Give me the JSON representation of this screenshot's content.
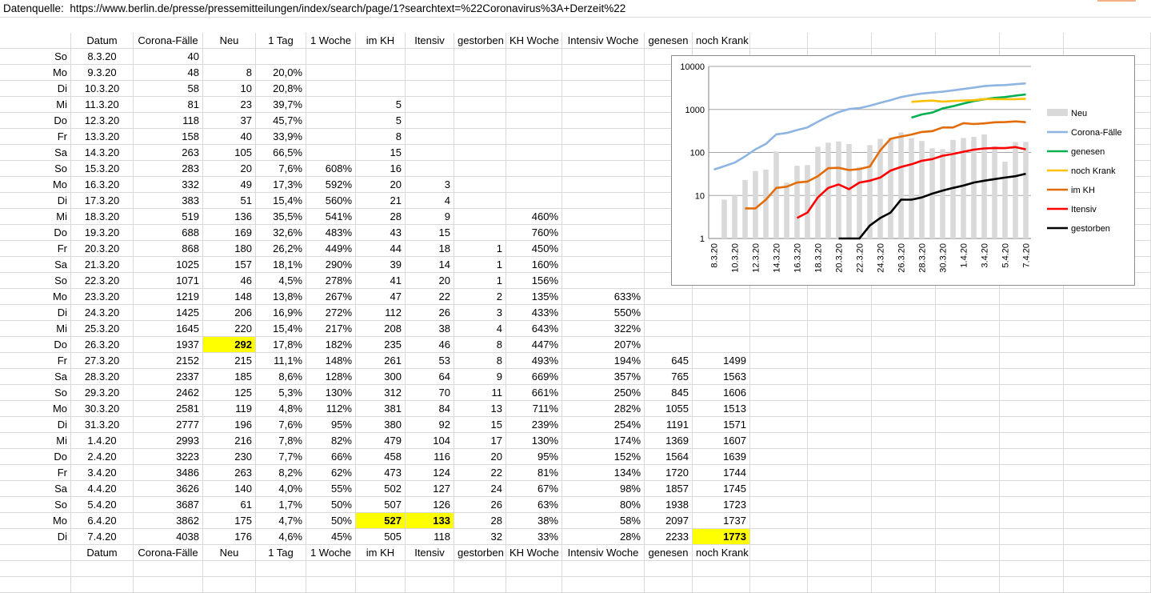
{
  "source": {
    "label": "Datenquelle:",
    "url": "https://www.berlin.de/presse/pressemitteilungen/index/search/page/1?searchtext=%22Coronavirus%3A+Derzeit%22"
  },
  "table": {
    "headers": [
      "",
      "Datum",
      "Corona-Fälle",
      "Neu",
      "1 Tag",
      "1 Woche",
      "im KH",
      "Itensiv",
      "gestorben",
      "KH Woche",
      "Intensiv Woche",
      "genesen",
      "noch Krank"
    ],
    "rows": [
      [
        "So",
        "8.3.20",
        "40",
        "",
        "",
        "",
        "",
        "",
        "",
        "",
        "",
        "",
        ""
      ],
      [
        "Mo",
        "9.3.20",
        "48",
        "8",
        "20,0%",
        "",
        "",
        "",
        "",
        "",
        "",
        "",
        ""
      ],
      [
        "Di",
        "10.3.20",
        "58",
        "10",
        "20,8%",
        "",
        "",
        "",
        "",
        "",
        "",
        "",
        ""
      ],
      [
        "Mi",
        "11.3.20",
        "81",
        "23",
        "39,7%",
        "",
        "5",
        "",
        "",
        "",
        "",
        "",
        ""
      ],
      [
        "Do",
        "12.3.20",
        "118",
        "37",
        "45,7%",
        "",
        "5",
        "",
        "",
        "",
        "",
        "",
        ""
      ],
      [
        "Fr",
        "13.3.20",
        "158",
        "40",
        "33,9%",
        "",
        "8",
        "",
        "",
        "",
        "",
        "",
        ""
      ],
      [
        "Sa",
        "14.3.20",
        "263",
        "105",
        "66,5%",
        "",
        "15",
        "",
        "",
        "",
        "",
        "",
        ""
      ],
      [
        "So",
        "15.3.20",
        "283",
        "20",
        "7,6%",
        "608%",
        "16",
        "",
        "",
        "",
        "",
        "",
        ""
      ],
      [
        "Mo",
        "16.3.20",
        "332",
        "49",
        "17,3%",
        "592%",
        "20",
        "3",
        "",
        "",
        "",
        "",
        ""
      ],
      [
        "Di",
        "17.3.20",
        "383",
        "51",
        "15,4%",
        "560%",
        "21",
        "4",
        "",
        "",
        "",
        "",
        ""
      ],
      [
        "Mi",
        "18.3.20",
        "519",
        "136",
        "35,5%",
        "541%",
        "28",
        "9",
        "",
        "460%",
        "",
        "",
        ""
      ],
      [
        "Do",
        "19.3.20",
        "688",
        "169",
        "32,6%",
        "483%",
        "43",
        "15",
        "",
        "760%",
        "",
        "",
        ""
      ],
      [
        "Fr",
        "20.3.20",
        "868",
        "180",
        "26,2%",
        "449%",
        "44",
        "18",
        "1",
        "450%",
        "",
        "",
        ""
      ],
      [
        "Sa",
        "21.3.20",
        "1025",
        "157",
        "18,1%",
        "290%",
        "39",
        "14",
        "1",
        "160%",
        "",
        "",
        ""
      ],
      [
        "So",
        "22.3.20",
        "1071",
        "46",
        "4,5%",
        "278%",
        "41",
        "20",
        "1",
        "156%",
        "",
        "",
        ""
      ],
      [
        "Mo",
        "23.3.20",
        "1219",
        "148",
        "13,8%",
        "267%",
        "47",
        "22",
        "2",
        "135%",
        "633%",
        "",
        ""
      ],
      [
        "Di",
        "24.3.20",
        "1425",
        "206",
        "16,9%",
        "272%",
        "112",
        "26",
        "3",
        "433%",
        "550%",
        "",
        ""
      ],
      [
        "Mi",
        "25.3.20",
        "1645",
        "220",
        "15,4%",
        "217%",
        "208",
        "38",
        "4",
        "643%",
        "322%",
        "",
        ""
      ],
      [
        "Do",
        "26.3.20",
        "1937",
        "292",
        "17,8%",
        "182%",
        "235",
        "46",
        "8",
        "447%",
        "207%",
        "",
        ""
      ],
      [
        "Fr",
        "27.3.20",
        "2152",
        "215",
        "11,1%",
        "148%",
        "261",
        "53",
        "8",
        "493%",
        "194%",
        "645",
        "1499"
      ],
      [
        "Sa",
        "28.3.20",
        "2337",
        "185",
        "8,6%",
        "128%",
        "300",
        "64",
        "9",
        "669%",
        "357%",
        "765",
        "1563"
      ],
      [
        "So",
        "29.3.20",
        "2462",
        "125",
        "5,3%",
        "130%",
        "312",
        "70",
        "11",
        "661%",
        "250%",
        "845",
        "1606"
      ],
      [
        "Mo",
        "30.3.20",
        "2581",
        "119",
        "4,8%",
        "112%",
        "381",
        "84",
        "13",
        "711%",
        "282%",
        "1055",
        "1513"
      ],
      [
        "Di",
        "31.3.20",
        "2777",
        "196",
        "7,6%",
        "95%",
        "380",
        "92",
        "15",
        "239%",
        "254%",
        "1191",
        "1571"
      ],
      [
        "Mi",
        "1.4.20",
        "2993",
        "216",
        "7,8%",
        "82%",
        "479",
        "104",
        "17",
        "130%",
        "174%",
        "1369",
        "1607"
      ],
      [
        "Do",
        "2.4.20",
        "3223",
        "230",
        "7,7%",
        "66%",
        "458",
        "116",
        "20",
        "95%",
        "152%",
        "1564",
        "1639"
      ],
      [
        "Fr",
        "3.4.20",
        "3486",
        "263",
        "8,2%",
        "62%",
        "473",
        "124",
        "22",
        "81%",
        "134%",
        "1720",
        "1744"
      ],
      [
        "Sa",
        "4.4.20",
        "3626",
        "140",
        "4,0%",
        "55%",
        "502",
        "127",
        "24",
        "67%",
        "98%",
        "1857",
        "1745"
      ],
      [
        "So",
        "5.4.20",
        "3687",
        "61",
        "1,7%",
        "50%",
        "507",
        "126",
        "26",
        "63%",
        "80%",
        "1938",
        "1723"
      ],
      [
        "Mo",
        "6.4.20",
        "3862",
        "175",
        "4,7%",
        "50%",
        "527",
        "133",
        "28",
        "38%",
        "58%",
        "2097",
        "1737"
      ],
      [
        "Di",
        "7.4.20",
        "4038",
        "176",
        "4,6%",
        "45%",
        "505",
        "118",
        "32",
        "33%",
        "28%",
        "2233",
        "1773"
      ]
    ],
    "footer": [
      "",
      "Datum",
      "Corona-Fälle",
      "Neu",
      "1 Tag",
      "1 Woche",
      "im KH",
      "Itensiv",
      "gestorben",
      "KH Woche",
      "Intensiv Woche",
      "genesen",
      "noch Krank"
    ],
    "highlight_color": "#ffff00",
    "highlighted_cells": [
      {
        "row": 18,
        "col": 3
      },
      {
        "row": 29,
        "col": 6
      },
      {
        "row": 29,
        "col": 7
      },
      {
        "row": 30,
        "col": 12
      }
    ]
  },
  "chart_data": {
    "type": "bar",
    "y_scale": "log",
    "ylim": [
      1,
      10000
    ],
    "y_ticks": [
      "10000",
      "1000",
      "100",
      "10",
      "1"
    ],
    "categories": [
      "8.3.20",
      "9.3.20",
      "10.3.20",
      "11.3.20",
      "12.3.20",
      "13.3.20",
      "14.3.20",
      "15.3.20",
      "16.3.20",
      "17.3.20",
      "18.3.20",
      "19.3.20",
      "20.3.20",
      "21.3.20",
      "22.3.20",
      "23.3.20",
      "24.3.20",
      "25.3.20",
      "26.3.20",
      "27.3.20",
      "28.3.20",
      "29.3.20",
      "30.3.20",
      "31.3.20",
      "1.4.20",
      "2.4.20",
      "3.4.20",
      "4.4.20",
      "5.4.20",
      "6.4.20",
      "7.4.20"
    ],
    "x_tick_labels": [
      "8.3.20",
      "10.3.20",
      "12.3.20",
      "14.3.20",
      "16.3.20",
      "18.3.20",
      "20.3.20",
      "22.3.20",
      "24.3.20",
      "26.3.20",
      "28.3.20",
      "30.3.20",
      "1.4.20",
      "3.4.20",
      "5.4.20",
      "7.4.20"
    ],
    "legend_position": "right",
    "gridlines": true,
    "series": [
      {
        "name": "Neu",
        "kind": "bar",
        "color": "#d9d9d9",
        "values": [
          null,
          8,
          10,
          23,
          37,
          40,
          105,
          20,
          49,
          51,
          136,
          169,
          180,
          157,
          46,
          148,
          206,
          220,
          292,
          215,
          185,
          125,
          119,
          196,
          216,
          230,
          263,
          140,
          61,
          175,
          176
        ]
      },
      {
        "name": "Corona-Fälle",
        "kind": "line",
        "color": "#8eb4e3",
        "values": [
          40,
          48,
          58,
          81,
          118,
          158,
          263,
          283,
          332,
          383,
          519,
          688,
          868,
          1025,
          1071,
          1219,
          1425,
          1645,
          1937,
          2152,
          2337,
          2462,
          2581,
          2777,
          2993,
          3223,
          3486,
          3626,
          3687,
          3862,
          4038
        ]
      },
      {
        "name": "genesen",
        "kind": "line",
        "color": "#00b050",
        "values": [
          null,
          null,
          null,
          null,
          null,
          null,
          null,
          null,
          null,
          null,
          null,
          null,
          null,
          null,
          null,
          null,
          null,
          null,
          null,
          645,
          765,
          845,
          1055,
          1191,
          1369,
          1564,
          1720,
          1857,
          1938,
          2097,
          2233
        ]
      },
      {
        "name": "noch Krank",
        "kind": "line",
        "color": "#ffc000",
        "values": [
          null,
          null,
          null,
          null,
          null,
          null,
          null,
          null,
          null,
          null,
          null,
          null,
          null,
          null,
          null,
          null,
          null,
          null,
          null,
          1499,
          1563,
          1606,
          1513,
          1571,
          1607,
          1639,
          1744,
          1745,
          1723,
          1737,
          1773
        ]
      },
      {
        "name": "im KH",
        "kind": "line",
        "color": "#e36c09",
        "values": [
          null,
          null,
          null,
          5,
          5,
          8,
          15,
          16,
          20,
          21,
          28,
          43,
          44,
          39,
          41,
          47,
          112,
          208,
          235,
          261,
          300,
          312,
          381,
          380,
          479,
          458,
          473,
          502,
          507,
          527,
          505
        ]
      },
      {
        "name": "Itensiv",
        "kind": "line",
        "color": "#ff0000",
        "values": [
          null,
          null,
          null,
          null,
          null,
          null,
          null,
          null,
          3,
          4,
          9,
          15,
          18,
          14,
          20,
          22,
          26,
          38,
          46,
          53,
          64,
          70,
          84,
          92,
          104,
          116,
          124,
          127,
          126,
          133,
          118
        ]
      },
      {
        "name": "gestorben",
        "kind": "line",
        "color": "#000000",
        "values": [
          null,
          null,
          null,
          null,
          null,
          null,
          null,
          null,
          null,
          null,
          null,
          null,
          1,
          1,
          1,
          2,
          3,
          4,
          8,
          8,
          9,
          11,
          13,
          15,
          17,
          20,
          22,
          24,
          26,
          28,
          32
        ]
      }
    ]
  }
}
